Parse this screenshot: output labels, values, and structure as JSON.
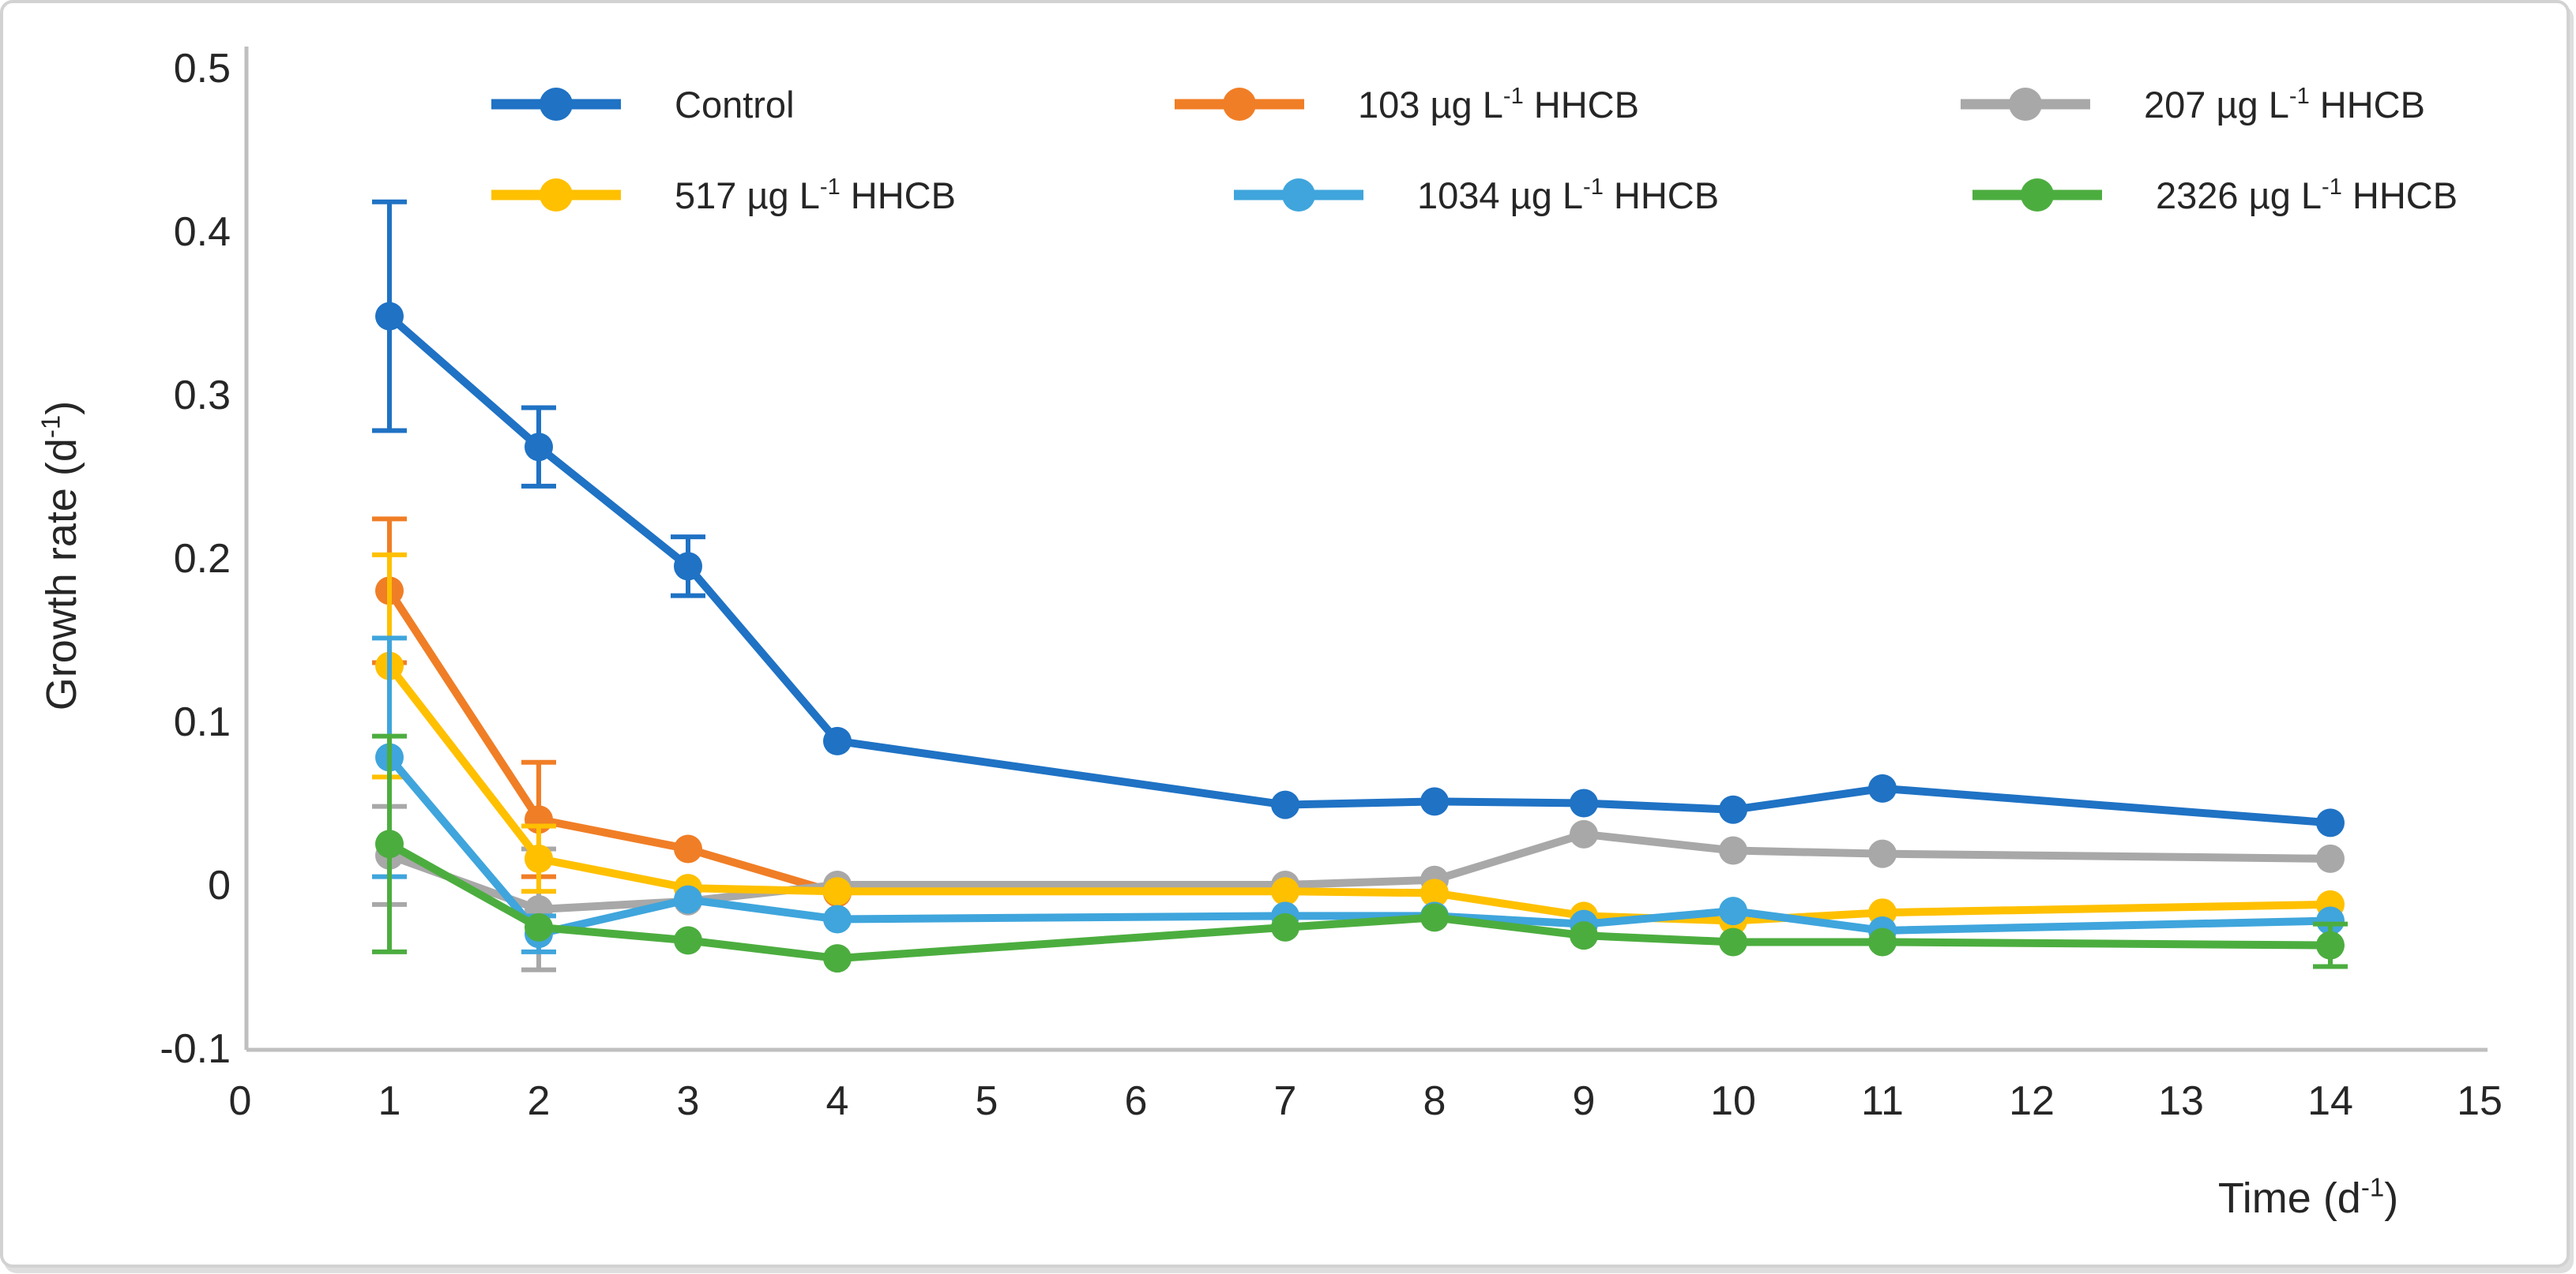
{
  "chart_data": {
    "type": "line",
    "title": "",
    "xlabel": "Time (d⁻¹)",
    "ylabel": "Growth rate (d⁻¹)",
    "xlabel_parts": {
      "pre": "Time (d",
      "sup": "-1",
      "post": ")"
    },
    "ylabel_parts": {
      "pre": "Growth rate (d",
      "sup": "-1",
      "post": ")"
    },
    "xlim": [
      0,
      15
    ],
    "ylim": [
      -0.1,
      0.5
    ],
    "grid": false,
    "legend_position": "top",
    "x_ticks": [
      "0",
      "1",
      "2",
      "3",
      "4",
      "5",
      "6",
      "7",
      "8",
      "9",
      "10",
      "11",
      "12",
      "13",
      "14",
      "15"
    ],
    "y_ticks": [
      {
        "label": "0.5",
        "value": 0.5
      },
      {
        "label": "0.4",
        "value": 0.4
      },
      {
        "label": "0.3",
        "value": 0.3
      },
      {
        "label": "0.2",
        "value": 0.2
      },
      {
        "label": "0.1",
        "value": 0.1
      },
      {
        "label": "0",
        "value": 0.0
      },
      {
        "label": "-0.1",
        "value": -0.1
      }
    ],
    "x": [
      1,
      2,
      3,
      4,
      7,
      8,
      9,
      10,
      11,
      14
    ],
    "series": [
      {
        "name": "Control",
        "label_pre": "Control",
        "label_sup": "",
        "label_post": "",
        "color": "#1F72C4",
        "values": [
          0.348,
          0.268,
          0.195,
          0.088,
          0.049,
          0.051,
          0.05,
          0.046,
          0.059,
          0.038
        ],
        "errors": [
          0.07,
          0.024,
          0.018,
          0,
          0,
          0,
          0,
          0,
          0,
          0
        ]
      },
      {
        "name": "103 µg L⁻¹ HHCB",
        "label_pre": "103 µg L",
        "label_sup": "-1",
        "label_post": " HHCB",
        "color": "#F07E26",
        "values": [
          0.18,
          0.04,
          0.022,
          -0.005
        ],
        "errors": [
          0.044,
          0.035,
          0,
          0
        ]
      },
      {
        "name": "207 µg L⁻¹ HHCB",
        "label_pre": "207 µg L",
        "label_sup": "-1",
        "label_post": " HHCB",
        "color": "#A8A8A8",
        "values": [
          0.018,
          -0.015,
          -0.01,
          0.0,
          0.0,
          0.003,
          0.031,
          0.021,
          0.019,
          0.016
        ],
        "errors": [
          0.03,
          0.037,
          0,
          0,
          0,
          0,
          0,
          0,
          0,
          0
        ]
      },
      {
        "name": "517 µg L⁻¹ HHCB",
        "label_pre": "517 µg L",
        "label_sup": "-1",
        "label_post": " HHCB",
        "color": "#FFC000",
        "values": [
          0.134,
          0.016,
          -0.002,
          -0.004,
          -0.004,
          -0.005,
          -0.019,
          -0.022,
          -0.017,
          -0.012
        ],
        "errors": [
          0.068,
          0.02,
          0,
          0,
          0,
          0,
          0,
          0,
          0,
          0
        ]
      },
      {
        "name": "1034 µg L⁻¹ HHCB",
        "label_pre": "1034 µg L",
        "label_sup": "-1",
        "label_post": " HHCB",
        "color": "#3FA5DC",
        "values": [
          0.078,
          -0.03,
          -0.009,
          -0.021,
          -0.019,
          -0.019,
          -0.024,
          -0.016,
          -0.028,
          -0.022
        ],
        "errors": [
          0.073,
          0.011,
          0,
          0,
          0,
          0,
          0,
          0,
          0,
          0
        ]
      },
      {
        "name": "2326 µg L⁻¹ HHCB",
        "label_pre": "2326 µg L",
        "label_sup": "-1",
        "label_post": " HHCB",
        "color": "#4CAD3F",
        "values": [
          0.025,
          -0.026,
          -0.034,
          -0.045,
          -0.026,
          -0.02,
          -0.031,
          -0.035,
          -0.035,
          -0.037
        ],
        "errors": [
          0.066,
          0,
          0,
          0,
          0,
          0,
          0,
          0,
          0,
          0.013
        ]
      }
    ]
  }
}
